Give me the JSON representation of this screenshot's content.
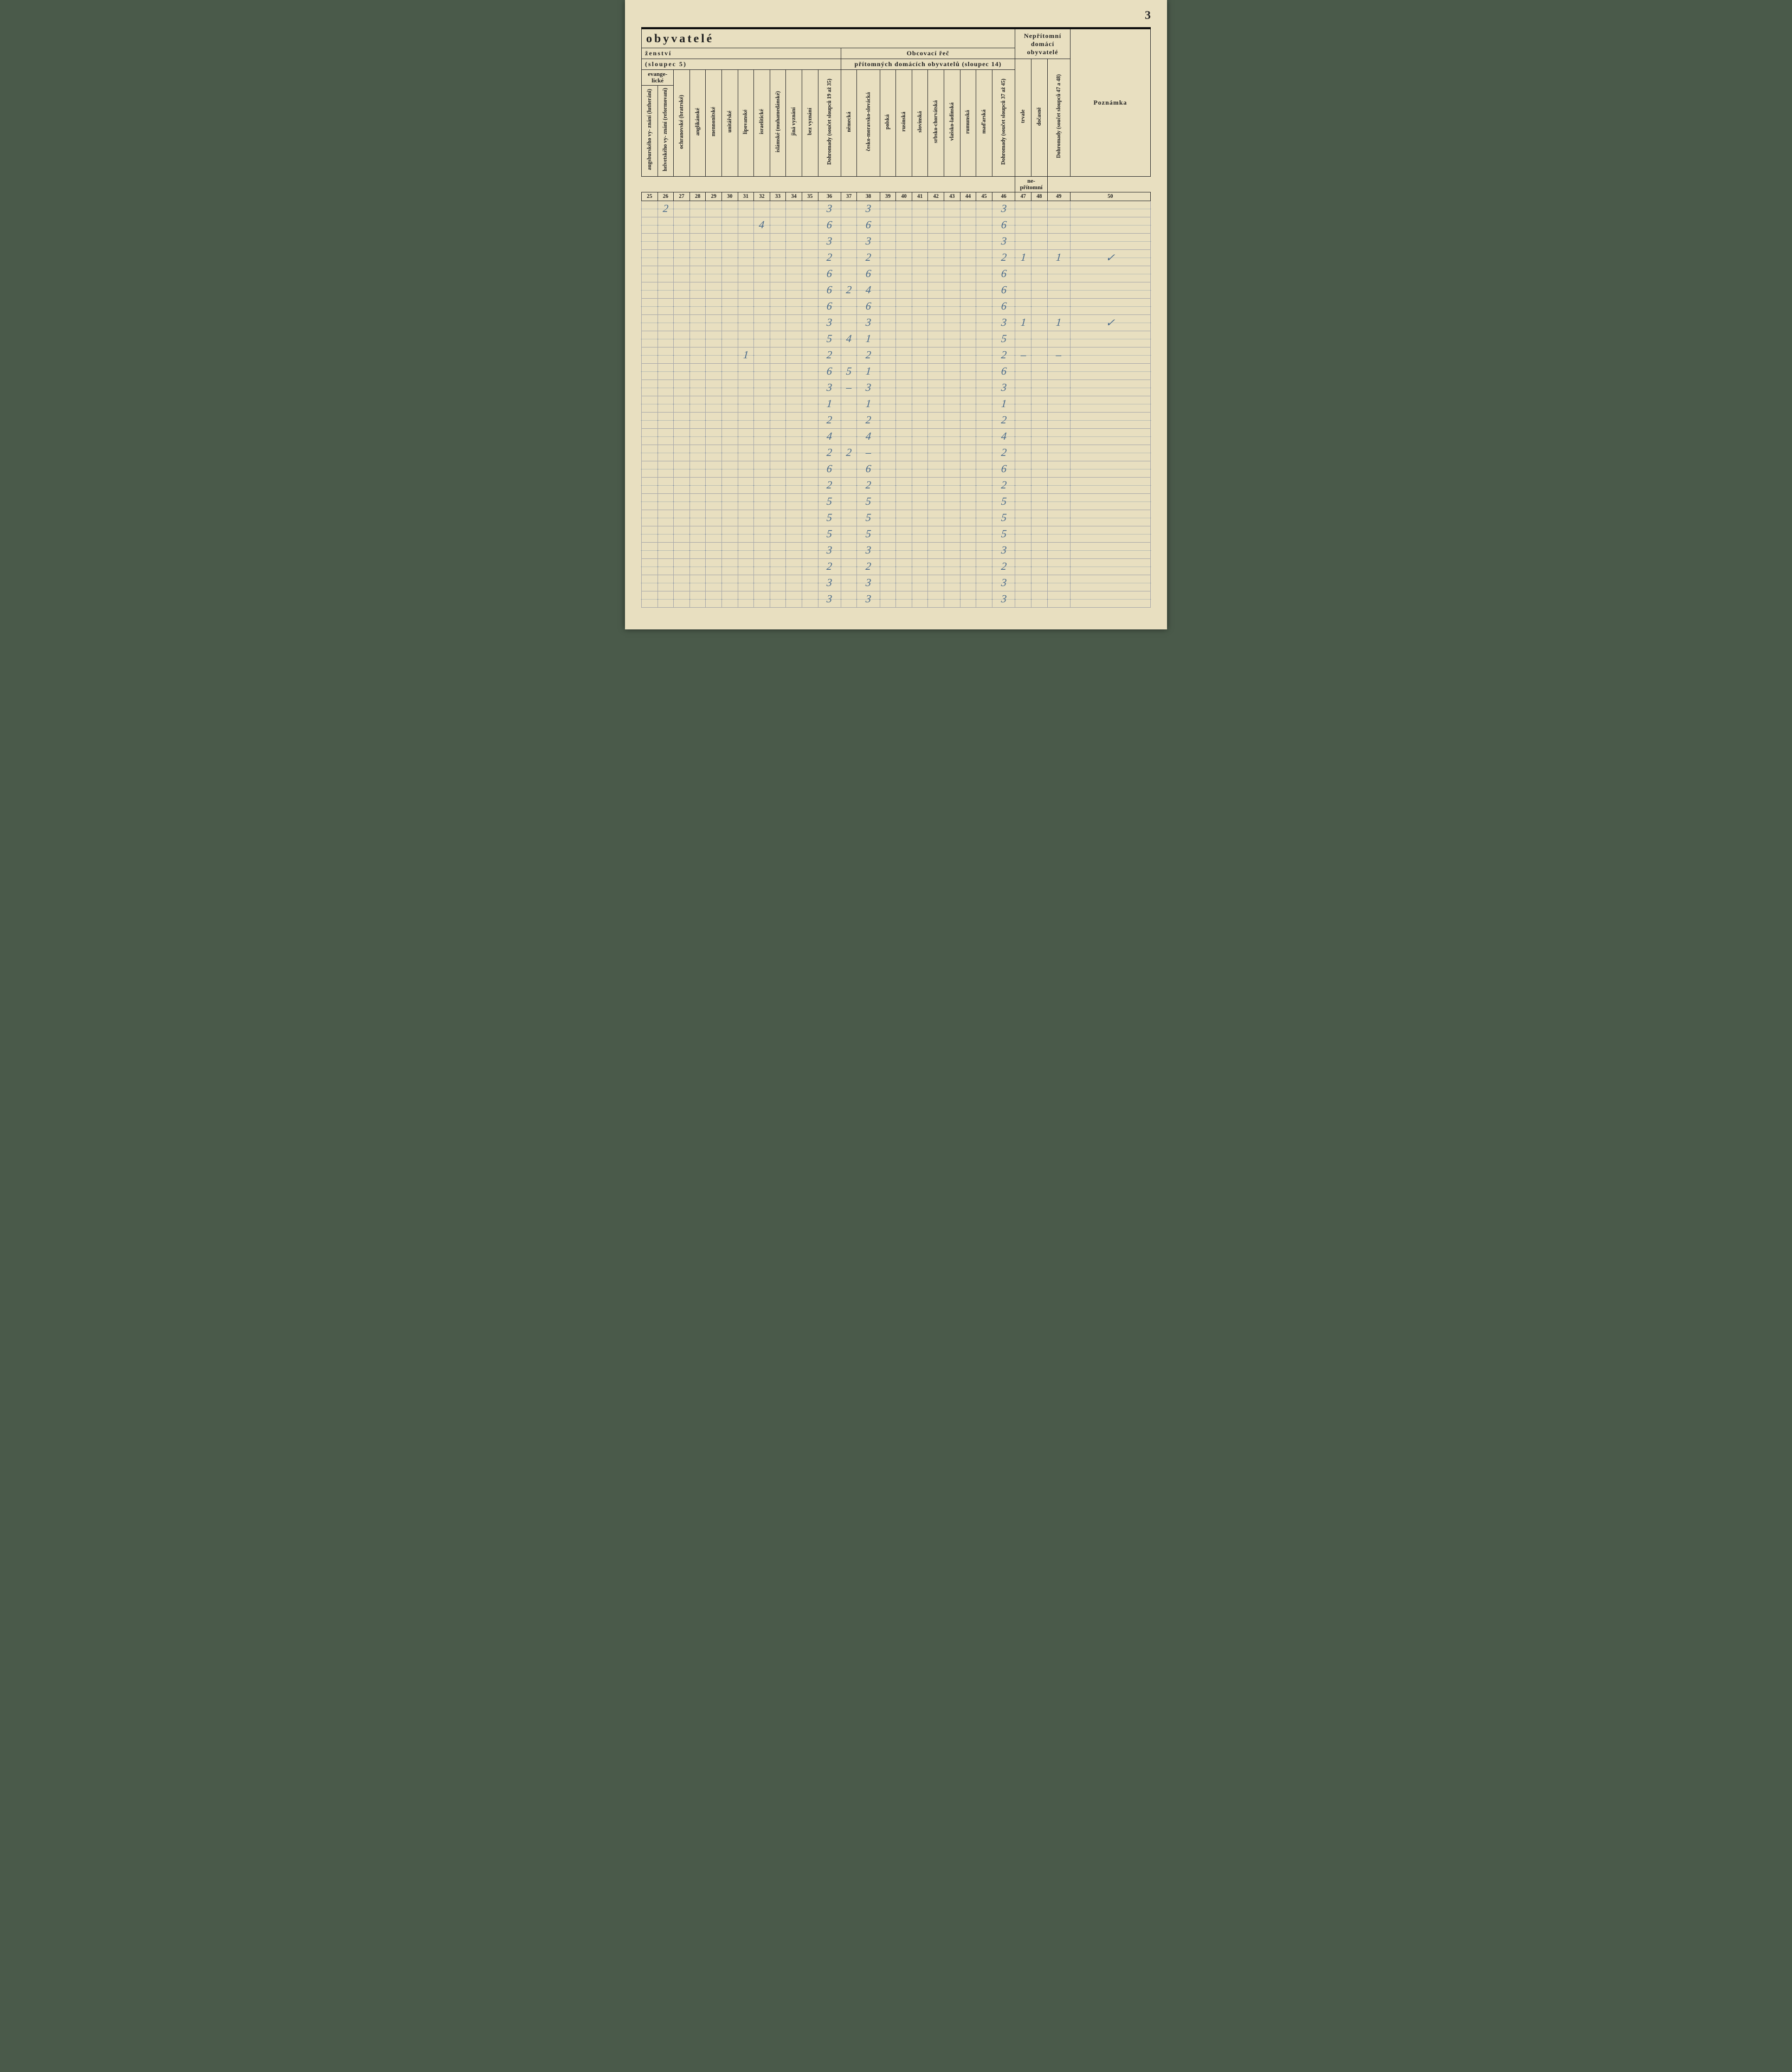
{
  "page_number": "3",
  "styling": {
    "paper_color": "#e8dfc0",
    "ink_print": "#222222",
    "ink_handwriting": "#4a6a8a",
    "scan_bg": "#4a5a4a",
    "rule_color": "#333333",
    "light_rule": "#aaaaaa"
  },
  "header": {
    "main_title": "obyvatelé",
    "left_subtitle": "ženství",
    "left_subtitle2": "(sloupec 5)",
    "right_subtitle": "Obcovací řeč",
    "right_subtitle2": "přítomných domácích obyvatelů (sloupec 14)",
    "nepritomni_title": "Nepřítomní domácí obyvatelé",
    "evangel_group": "evange-\nlické",
    "nepritomni_group": "ne-\npřítomní",
    "poznamka": "Poznámka"
  },
  "columns": [
    {
      "num": "25",
      "label": "augsburského vy-\nznání (lutheráni)"
    },
    {
      "num": "26",
      "label": "helvetského vy-\nznání (reformovaní)"
    },
    {
      "num": "27",
      "label": "ochranovské (bratrské)"
    },
    {
      "num": "28",
      "label": "anglikánské"
    },
    {
      "num": "29",
      "label": "mennonitské"
    },
    {
      "num": "30",
      "label": "unitářské"
    },
    {
      "num": "31",
      "label": "lipovanské"
    },
    {
      "num": "32",
      "label": "israelitické"
    },
    {
      "num": "33",
      "label": "islámské (muhamedánské)"
    },
    {
      "num": "34",
      "label": "jiná vyznání"
    },
    {
      "num": "35",
      "label": "bez vyznání"
    },
    {
      "num": "36",
      "label": "Dohromady (součet\nsloupců 19 až 35)"
    },
    {
      "num": "37",
      "label": "německá"
    },
    {
      "num": "38",
      "label": "česko-moravsko-slovácká"
    },
    {
      "num": "39",
      "label": "polská"
    },
    {
      "num": "40",
      "label": "rusínská"
    },
    {
      "num": "41",
      "label": "slovinská"
    },
    {
      "num": "42",
      "label": "srbsko-chorvátská"
    },
    {
      "num": "43",
      "label": "vlašsko-ladinská"
    },
    {
      "num": "44",
      "label": "rumunská"
    },
    {
      "num": "45",
      "label": "maďarská"
    },
    {
      "num": "46",
      "label": "Dohromady (součet\nsloupců 37 až 45)"
    },
    {
      "num": "47",
      "label": "trvale"
    },
    {
      "num": "48",
      "label": "dočasně"
    },
    {
      "num": "49",
      "label": "Dohromady (součet sloupců\n47 a 48)"
    },
    {
      "num": "50",
      "label": ""
    }
  ],
  "rows": [
    {
      "c26": "2",
      "c36": "3",
      "c38": "3",
      "c46": "3"
    },
    {
      "c32": "4",
      "c36": "6",
      "c38": "6",
      "c46": "6"
    },
    {
      "c36": "3",
      "c38": "3",
      "c46": "3"
    },
    {
      "c36": "2",
      "c38": "2",
      "c46": "2",
      "c47": "1",
      "c49": "1",
      "c50": "✓"
    },
    {
      "c36": "6",
      "c38": "6",
      "c46": "6"
    },
    {
      "c36": "6",
      "c37": "2",
      "c38": "4",
      "c46": "6"
    },
    {
      "c36": "6",
      "c38": "6",
      "c46": "6"
    },
    {
      "c36": "3",
      "c38": "3",
      "c46": "3",
      "c47": "1",
      "c49": "1",
      "c50": "✓"
    },
    {
      "c36": "5",
      "c37": "4",
      "c38": "1",
      "c46": "5"
    },
    {
      "c31": "1",
      "c36": "2",
      "c38": "2",
      "c46": "2",
      "c47": "–",
      "c49": "–"
    },
    {
      "c36": "6",
      "c37": "5",
      "c38": "1",
      "c46": "6"
    },
    {
      "c36": "3",
      "c37": "–",
      "c38": "3",
      "c46": "3"
    },
    {
      "c36": "1",
      "c38": "1",
      "c46": "1"
    },
    {
      "c36": "2",
      "c38": "2",
      "c46": "2"
    },
    {
      "c36": "4",
      "c38": "4",
      "c46": "4"
    },
    {
      "c36": "2",
      "c37": "2",
      "c38": "–",
      "c46": "2"
    },
    {
      "c36": "6",
      "c38": "6",
      "c46": "6"
    },
    {
      "c36": "2",
      "c38": "2",
      "c46": "2"
    },
    {
      "c36": "5",
      "c38": "5",
      "c46": "5"
    },
    {
      "c36": "5",
      "c38": "5",
      "c46": "5"
    },
    {
      "c36": "5",
      "c38": "5",
      "c46": "5"
    },
    {
      "c36": "3",
      "c38": "3",
      "c46": "3"
    },
    {
      "c36": "2",
      "c38": "2",
      "c46": "2"
    },
    {
      "c36": "3",
      "c38": "3",
      "c46": "3"
    },
    {
      "c36": "3",
      "c38": "3",
      "c46": "3"
    }
  ]
}
